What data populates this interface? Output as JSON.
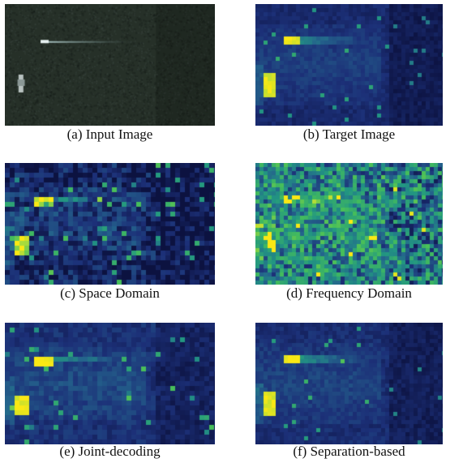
{
  "figure": {
    "panels": [
      {
        "id": "a",
        "caption": "(a) Input Image",
        "kind": "input"
      },
      {
        "id": "b",
        "caption": "(b) Target Image",
        "kind": "target"
      },
      {
        "id": "c",
        "caption": "(c) Space Domain",
        "kind": "space"
      },
      {
        "id": "d",
        "caption": "(d) Frequency Domain",
        "kind": "frequency"
      },
      {
        "id": "e",
        "caption": "(e) Joint-decoding",
        "kind": "joint"
      },
      {
        "id": "f",
        "caption": "(f) Separation-based",
        "kind": "separation"
      }
    ],
    "colors": {
      "colormap_low": "#0c1240",
      "colormap_mid": "#2a7a8c",
      "colormap_high": "#f5e600",
      "input_background": "#263028"
    }
  }
}
